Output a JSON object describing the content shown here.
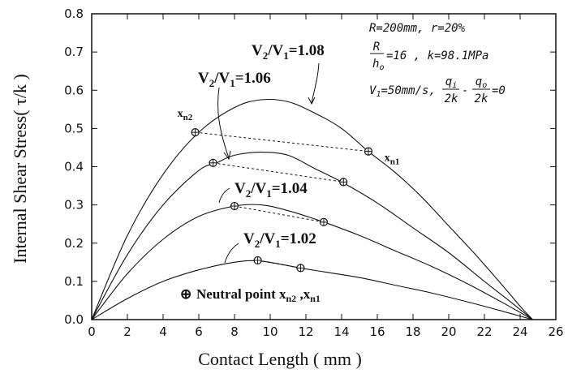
{
  "chart_data": {
    "type": "line",
    "title": "",
    "xlabel": "Contact Length ( mm )",
    "ylabel": "Internal Shear Stress( τ/k )",
    "xlim": [
      0,
      26
    ],
    "ylim": [
      0,
      0.8
    ],
    "xticks": [
      "0",
      "2",
      "4",
      "6",
      "8",
      "10",
      "12",
      "14",
      "16",
      "18",
      "20",
      "22",
      "24",
      "26"
    ],
    "yticks": [
      "0.0",
      "0.1",
      "0.2",
      "0.3",
      "0.4",
      "0.5",
      "0.6",
      "0.7",
      "0.8"
    ],
    "grid": false,
    "series": [
      {
        "name": "V2/V1=1.08",
        "label_html": "V<tspan font-size='13' dy='5'>2</tspan><tspan dy='-5'>/V</tspan><tspan font-size='13' dy='5'>1</tspan><tspan dy='-5'>=1.08</tspan>",
        "points": [
          [
            0,
            0
          ],
          [
            2,
            0.22
          ],
          [
            4,
            0.38
          ],
          [
            6,
            0.49
          ],
          [
            8,
            0.555
          ],
          [
            9.5,
            0.575
          ],
          [
            11,
            0.57
          ],
          [
            12.5,
            0.54
          ],
          [
            14,
            0.5
          ],
          [
            15.5,
            0.44
          ],
          [
            17,
            0.385
          ],
          [
            18.5,
            0.32
          ],
          [
            20,
            0.245
          ],
          [
            21.5,
            0.17
          ],
          [
            23,
            0.09
          ],
          [
            24,
            0.035
          ],
          [
            24.7,
            0
          ]
        ],
        "neutral_points": [
          [
            5.8,
            0.49
          ],
          [
            15.5,
            0.44
          ]
        ]
      },
      {
        "name": "V2/V1=1.06",
        "label_html": "V<tspan font-size='13' dy='5'>2</tspan><tspan dy='-5'>/V</tspan><tspan font-size='13' dy='5'>1</tspan><tspan dy='-5'>=1.06</tspan>",
        "points": [
          [
            0,
            0
          ],
          [
            2,
            0.17
          ],
          [
            4,
            0.3
          ],
          [
            6,
            0.39
          ],
          [
            7,
            0.41
          ],
          [
            8,
            0.43
          ],
          [
            9.5,
            0.438
          ],
          [
            11,
            0.43
          ],
          [
            12.5,
            0.395
          ],
          [
            14,
            0.36
          ],
          [
            16,
            0.305
          ],
          [
            18,
            0.24
          ],
          [
            20,
            0.175
          ],
          [
            22,
            0.1
          ],
          [
            23.5,
            0.045
          ],
          [
            24.7,
            0
          ]
        ],
        "neutral_points": [
          [
            6.8,
            0.41
          ],
          [
            14.1,
            0.36
          ]
        ]
      },
      {
        "name": "V2/V1=1.04",
        "label_html": "V<tspan font-size='13' dy='5'>2</tspan><tspan dy='-5'>/V</tspan><tspan font-size='13' dy='5'>1</tspan><tspan dy='-5'>=1.04</tspan>",
        "points": [
          [
            0,
            0
          ],
          [
            2,
            0.12
          ],
          [
            4,
            0.21
          ],
          [
            6,
            0.27
          ],
          [
            8,
            0.297
          ],
          [
            9.5,
            0.3
          ],
          [
            11,
            0.285
          ],
          [
            13,
            0.255
          ],
          [
            15,
            0.22
          ],
          [
            17,
            0.18
          ],
          [
            19,
            0.14
          ],
          [
            21,
            0.095
          ],
          [
            23,
            0.045
          ],
          [
            24.7,
            0
          ]
        ],
        "neutral_points": [
          [
            8,
            0.297
          ],
          [
            13,
            0.255
          ]
        ]
      },
      {
        "name": "V2/V1=1.02",
        "label_html": "V<tspan font-size='13' dy='5'>2</tspan><tspan dy='-5'>/V</tspan><tspan font-size='13' dy='5'>1</tspan><tspan dy='-5'>=1.02</tspan>",
        "points": [
          [
            0,
            0
          ],
          [
            2,
            0.055
          ],
          [
            4,
            0.1
          ],
          [
            6,
            0.13
          ],
          [
            8,
            0.15
          ],
          [
            9.5,
            0.153
          ],
          [
            11.7,
            0.135
          ],
          [
            13,
            0.125
          ],
          [
            15,
            0.11
          ],
          [
            17,
            0.09
          ],
          [
            19,
            0.07
          ],
          [
            21,
            0.047
          ],
          [
            23,
            0.022
          ],
          [
            24.7,
            0
          ]
        ],
        "neutral_points": [
          [
            9.3,
            0.155
          ],
          [
            11.7,
            0.135
          ]
        ]
      }
    ],
    "point_labels": [
      {
        "html": "x<tspan font-size='11' dy='4'>n2</tspan>",
        "at": [
          4.8,
          0.53
        ]
      },
      {
        "html": "x<tspan font-size='11' dy='4'>n1</tspan>",
        "at": [
          16.4,
          0.415
        ]
      }
    ],
    "legend": {
      "symbol": "⊕",
      "html": "Neutral point x<tspan font-size='12' dy='4'>n2</tspan><tspan dy='-4'> ,x</tspan><tspan font-size='12' dy='4'>n1</tspan>"
    },
    "parameters": {
      "line1": "R=200mm, r=20%",
      "line2_frac_num": "R",
      "line2_frac_den": "h",
      "line2_frac_den_sub": "o",
      "line2_rest": "=16 , k=98.1MPa",
      "line3_prefix": "V",
      "line3_prefix_sub": "1",
      "line3_mid": "=50mm/s,",
      "line3_f1_num": "q",
      "line3_f1_num_sub": "i",
      "line3_f1_den": "2k",
      "line3_minus": "-",
      "line3_f2_num": "q",
      "line3_f2_num_sub": "o",
      "line3_f2_den": "2k",
      "line3_end": "=0"
    }
  }
}
